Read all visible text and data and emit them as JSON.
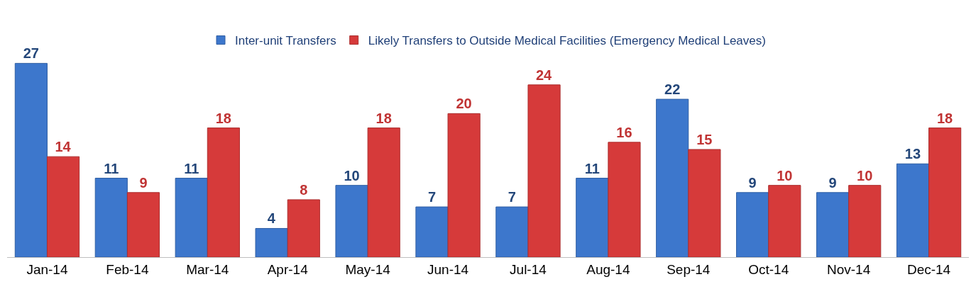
{
  "chart_data": {
    "type": "bar",
    "categories": [
      "Jan-14",
      "Feb-14",
      "Mar-14",
      "Apr-14",
      "May-14",
      "Jun-14",
      "Jul-14",
      "Aug-14",
      "Sep-14",
      "Oct-14",
      "Nov-14",
      "Dec-14"
    ],
    "series": [
      {
        "name": "Inter-unit Transfers",
        "color": "#3d77cc",
        "values": [
          27,
          11,
          11,
          4,
          10,
          7,
          7,
          11,
          22,
          9,
          9,
          13
        ]
      },
      {
        "name": "Likely Transfers to Outside Medical Facilities (Emergency Medical Leaves)",
        "color": "#d63a3a",
        "values": [
          14,
          9,
          18,
          8,
          18,
          20,
          24,
          16,
          15,
          10,
          10,
          18
        ]
      }
    ],
    "data_labels": true,
    "legend": "top"
  }
}
